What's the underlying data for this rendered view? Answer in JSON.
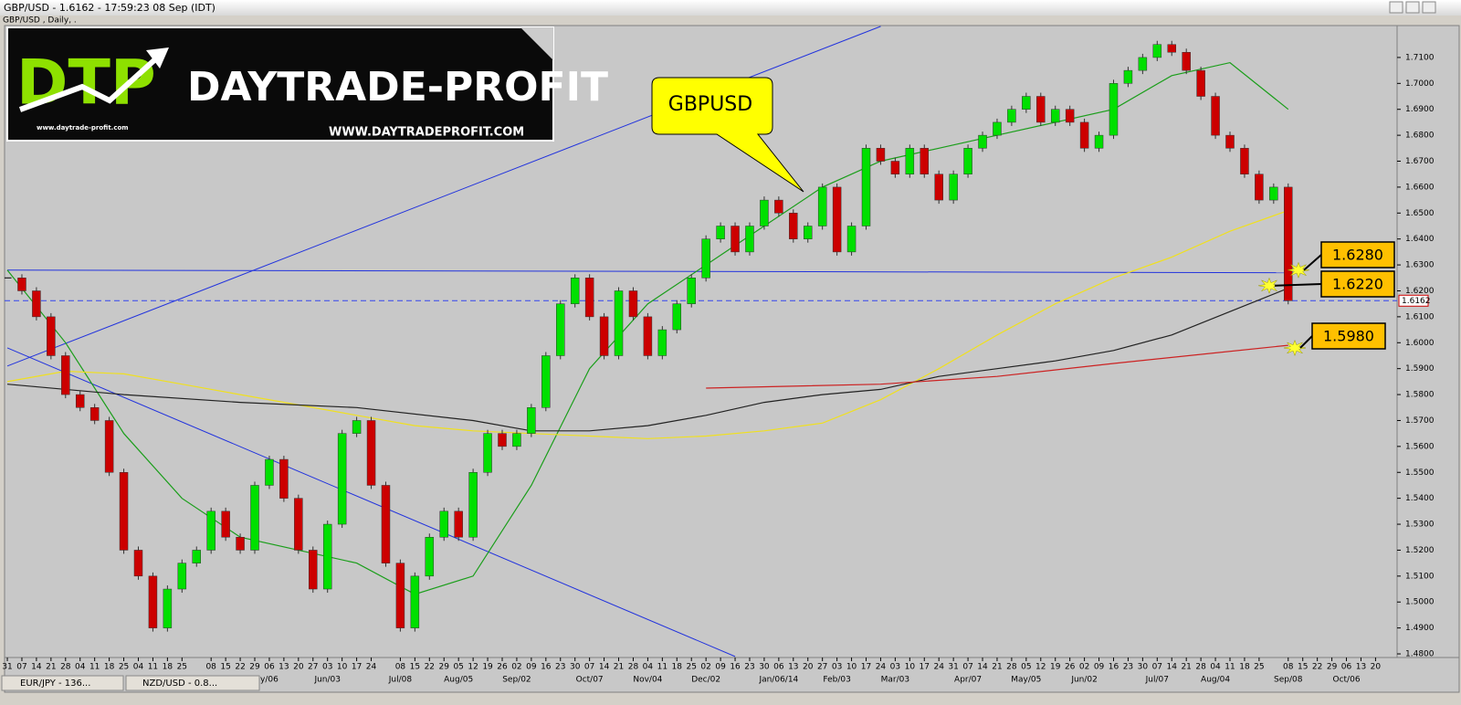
{
  "window": {
    "title": "GBP/USD - 1.6162 - 17:59:23  08 Sep (IDT)",
    "tabs": [
      "EUR/JPY - 136...",
      "NZD/USD - 0.8..."
    ]
  },
  "logo": {
    "mark": "DTP",
    "name": "DAYTRADE-PROFIT",
    "url": "WWW.DAYTRADEPROFIT.COM",
    "small_url": "www.daytrade-profit.com"
  },
  "chart_data": {
    "type": "candlestick",
    "subtitle": "GBP/USD , Daily, .",
    "categories": [
      "31",
      "07",
      "14",
      "21",
      "28",
      "04",
      "11",
      "18",
      "25",
      "04",
      "11",
      "18",
      "25",
      null,
      "08",
      "15",
      "22",
      "29",
      "06",
      "13",
      "20",
      "27",
      "03",
      "10",
      "17",
      "24",
      null,
      "08",
      "15",
      "22",
      "29",
      "05",
      "12",
      "19",
      "26",
      "02",
      "09",
      "16",
      "23",
      "30",
      "07",
      "14",
      "21",
      "28",
      "04",
      "11",
      "18",
      "25",
      "02",
      "09",
      "16",
      "23",
      "30",
      "06",
      "13",
      "20",
      "27",
      "03",
      "10",
      "17",
      "24",
      "03",
      "10",
      "17",
      "24",
      "31",
      "07",
      "14",
      "21",
      "28",
      "05",
      "12",
      "19",
      "26",
      "02",
      "09",
      "16",
      "23",
      "30",
      "07",
      "14",
      "21",
      "28",
      "04",
      "11",
      "18",
      "25",
      null,
      "08",
      "15",
      "22",
      "29",
      "06",
      "13",
      "20"
    ],
    "month_ticks": [
      {
        "value": 18,
        "label": "y/06"
      },
      {
        "value": 22,
        "label": "Jun/03"
      },
      {
        "value": 27,
        "label": "Jul/08"
      },
      {
        "value": 31,
        "label": "Aug/05"
      },
      {
        "value": 35,
        "label": "Sep/02"
      },
      {
        "value": 40,
        "label": "Oct/07"
      },
      {
        "value": 44,
        "label": "Nov/04"
      },
      {
        "value": 48,
        "label": "Dec/02"
      },
      {
        "value": 53,
        "label": "Jan/06/14"
      },
      {
        "value": 57,
        "label": "Feb/03"
      },
      {
        "value": 61,
        "label": "Mar/03"
      },
      {
        "value": 66,
        "label": "Apr/07"
      },
      {
        "value": 70,
        "label": "May/05"
      },
      {
        "value": 74,
        "label": "Jun/02"
      },
      {
        "value": 79,
        "label": "Jul/07"
      },
      {
        "value": 83,
        "label": "Aug/04"
      },
      {
        "value": 88,
        "label": "Sep/08"
      },
      {
        "value": 92,
        "label": "Oct/06"
      }
    ],
    "series": [
      {
        "name": "GBP/USD",
        "up_color": "#00e000",
        "down_color": "#cc0000",
        "values": [
          1.625,
          1.62,
          1.61,
          1.595,
          1.58,
          1.575,
          1.57,
          1.55,
          1.52,
          1.51,
          1.49,
          1.505,
          1.515,
          1.52,
          1.535,
          1.525,
          1.52,
          1.545,
          1.555,
          1.54,
          1.52,
          1.505,
          1.53,
          1.565,
          1.57,
          1.545,
          1.515,
          1.49,
          1.51,
          1.525,
          1.535,
          1.525,
          1.55,
          1.565,
          1.56,
          1.565,
          1.575,
          1.595,
          1.615,
          1.625,
          1.61,
          1.595,
          1.62,
          1.61,
          1.595,
          1.605,
          1.615,
          1.625,
          1.64,
          1.645,
          1.635,
          1.645,
          1.655,
          1.65,
          1.64,
          1.645,
          1.66,
          1.635,
          1.645,
          1.675,
          1.67,
          1.665,
          1.675,
          1.665,
          1.655,
          1.665,
          1.675,
          1.68,
          1.685,
          1.69,
          1.695,
          1.685,
          1.69,
          1.685,
          1.675,
          1.68,
          1.7,
          1.705,
          1.71,
          1.715,
          1.712,
          1.705,
          1.695,
          1.68,
          1.675,
          1.665,
          1.655,
          1.66,
          1.6162,
          null,
          null,
          null,
          null,
          null,
          null
        ]
      }
    ],
    "moving_averages": [
      {
        "color": "#1a9e1a",
        "x": [
          0,
          4,
          8,
          12,
          16,
          20,
          24,
          28,
          32,
          36,
          40,
          44,
          48,
          52,
          56,
          60,
          64,
          68,
          72,
          76,
          80,
          84,
          88
        ],
        "values": [
          1.628,
          1.6,
          1.565,
          1.54,
          1.525,
          1.52,
          1.515,
          1.503,
          1.51,
          1.545,
          1.59,
          1.615,
          1.63,
          1.645,
          1.66,
          1.67,
          1.675,
          1.68,
          1.685,
          1.69,
          1.703,
          1.708,
          1.69
        ]
      },
      {
        "color": "#f0e020",
        "x": [
          0,
          4,
          8,
          12,
          16,
          20,
          24,
          28,
          32,
          36,
          40,
          44,
          48,
          52,
          56,
          60,
          64,
          68,
          72,
          76,
          80,
          84,
          88
        ],
        "values": [
          1.585,
          1.589,
          1.588,
          1.584,
          1.58,
          1.576,
          1.572,
          1.568,
          1.566,
          1.565,
          1.564,
          1.563,
          1.564,
          1.566,
          1.569,
          1.578,
          1.59,
          1.603,
          1.615,
          1.625,
          1.633,
          1.643,
          1.651
        ]
      },
      {
        "color": "#222222",
        "x": [
          0,
          8,
          16,
          24,
          32,
          36,
          40,
          44,
          48,
          52,
          56,
          60,
          64,
          68,
          72,
          76,
          80,
          84,
          88
        ],
        "values": [
          1.584,
          1.58,
          1.577,
          1.575,
          1.57,
          1.566,
          1.566,
          1.568,
          1.572,
          1.577,
          1.58,
          1.582,
          1.587,
          1.59,
          1.593,
          1.597,
          1.603,
          1.612,
          1.621
        ]
      },
      {
        "color": "#cc2222",
        "x": [
          48,
          60,
          68,
          76,
          88
        ],
        "values": [
          1.5825,
          1.584,
          1.587,
          1.592,
          1.599
        ]
      }
    ],
    "trendlines": [
      {
        "color": "#2233dd",
        "x": [
          0,
          60
        ],
        "values": [
          1.591,
          1.722
        ]
      },
      {
        "color": "#2233dd",
        "x": [
          0,
          88
        ],
        "values": [
          1.628,
          1.627
        ]
      },
      {
        "color": "#2233dd",
        "x": [
          0,
          50
        ],
        "values": [
          1.598,
          1.479
        ]
      }
    ],
    "last_price": 1.6162,
    "xlim": [
      -0.19,
      95.48
    ],
    "ylim": [
      1.4786,
      1.7223
    ],
    "yticks": [
      {
        "value": 1.48,
        "label": "1.4800"
      },
      {
        "value": 1.49,
        "label": "1.4900"
      },
      {
        "value": 1.5,
        "label": "1.5000"
      },
      {
        "value": 1.51,
        "label": "1.5100"
      },
      {
        "value": 1.52,
        "label": "1.5200"
      },
      {
        "value": 1.53,
        "label": "1.5300"
      },
      {
        "value": 1.54,
        "label": "1.5400"
      },
      {
        "value": 1.55,
        "label": "1.5500"
      },
      {
        "value": 1.56,
        "label": "1.5600"
      },
      {
        "value": 1.57,
        "label": "1.5700"
      },
      {
        "value": 1.58,
        "label": "1.5800"
      },
      {
        "value": 1.59,
        "label": "1.5900"
      },
      {
        "value": 1.6,
        "label": "1.6000"
      },
      {
        "value": 1.61,
        "label": "1.6100"
      },
      {
        "value": 1.62,
        "label": "1.6200"
      },
      {
        "value": 1.63,
        "label": "1.6300"
      },
      {
        "value": 1.64,
        "label": "1.6400"
      },
      {
        "value": 1.65,
        "label": "1.6500"
      },
      {
        "value": 1.66,
        "label": "1.6600"
      },
      {
        "value": 1.67,
        "label": "1.6700"
      },
      {
        "value": 1.68,
        "label": "1.6800"
      },
      {
        "value": 1.69,
        "label": "1.6900"
      },
      {
        "value": 1.7,
        "label": "1.7000"
      },
      {
        "value": 1.71,
        "label": "1.7100"
      }
    ],
    "callout": "GBPUSD",
    "levels": [
      {
        "value": 1.628,
        "label": "1.6280"
      },
      {
        "value": 1.622,
        "label": "1.6220"
      },
      {
        "value": 1.598,
        "label": "1.5980"
      }
    ]
  }
}
